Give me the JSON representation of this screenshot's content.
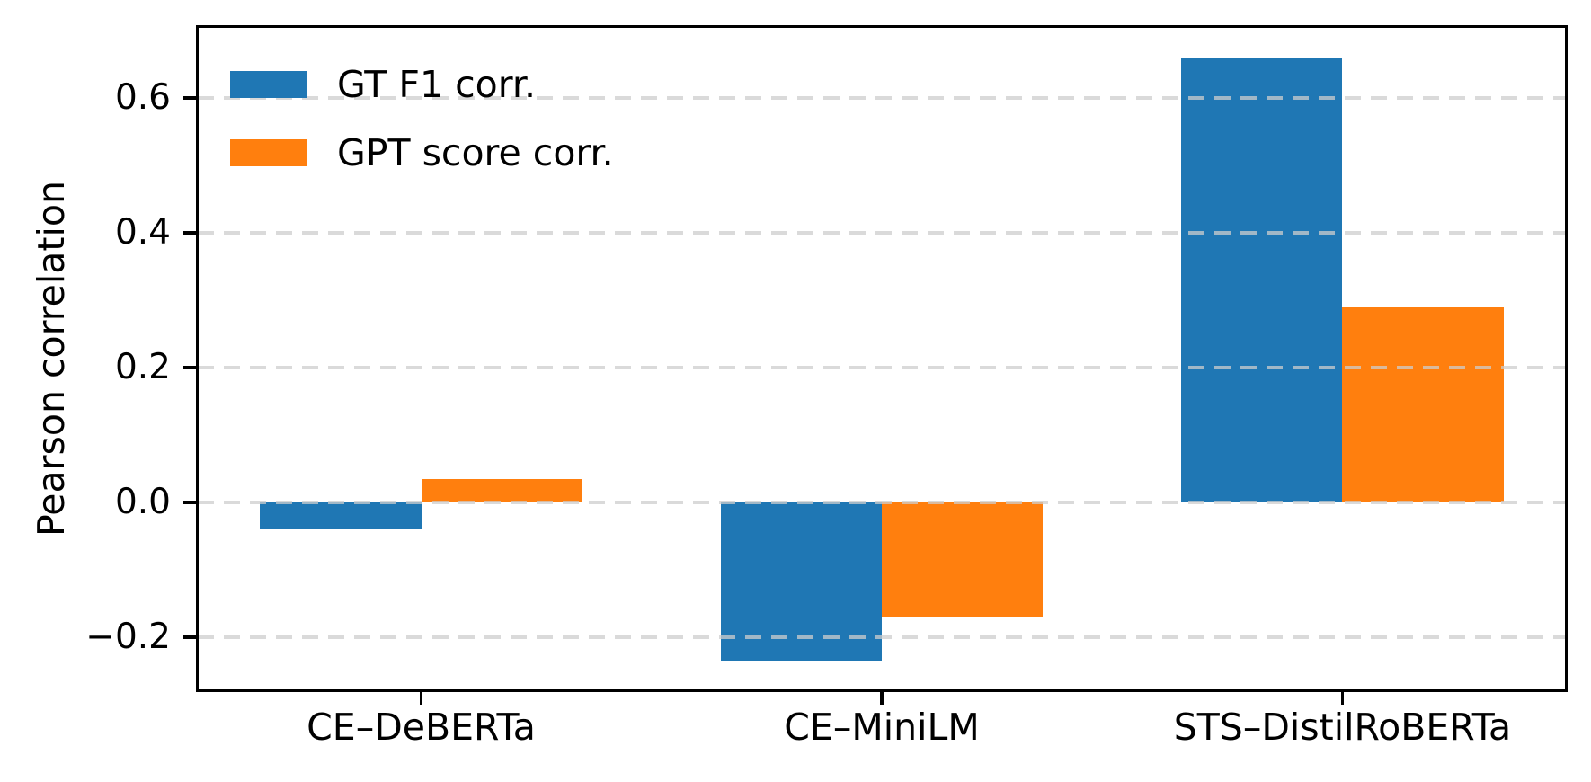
{
  "chart_data": {
    "type": "bar",
    "title": "",
    "xlabel": "",
    "ylabel": "Pearson correlation",
    "categories": [
      "CE–DeBERTa",
      "CE–MiniLM",
      "STS–DistilRoBERTa"
    ],
    "series": [
      {
        "name": "GT F1 corr.",
        "color": "#1f77b4",
        "values": [
          -0.04,
          -0.235,
          0.66
        ]
      },
      {
        "name": "GPT score corr.",
        "color": "#ff7f0e",
        "values": [
          0.035,
          -0.17,
          0.29
        ]
      }
    ],
    "yticks": [
      -0.2,
      0.0,
      0.2,
      0.4,
      0.6
    ],
    "ytick_labels": [
      "−0.2",
      "0.0",
      "0.2",
      "0.4",
      "0.6"
    ],
    "ylim": [
      -0.279,
      0.705
    ],
    "xlim": [
      -0.485,
      2.485
    ],
    "bar_width": 0.35,
    "grid": "horizontal-dashed",
    "grid_above_bars": true,
    "legend_position": "upper-left",
    "colors": {
      "axis": "#000000",
      "grid": "#cdcdcd",
      "background": "#ffffff"
    }
  }
}
